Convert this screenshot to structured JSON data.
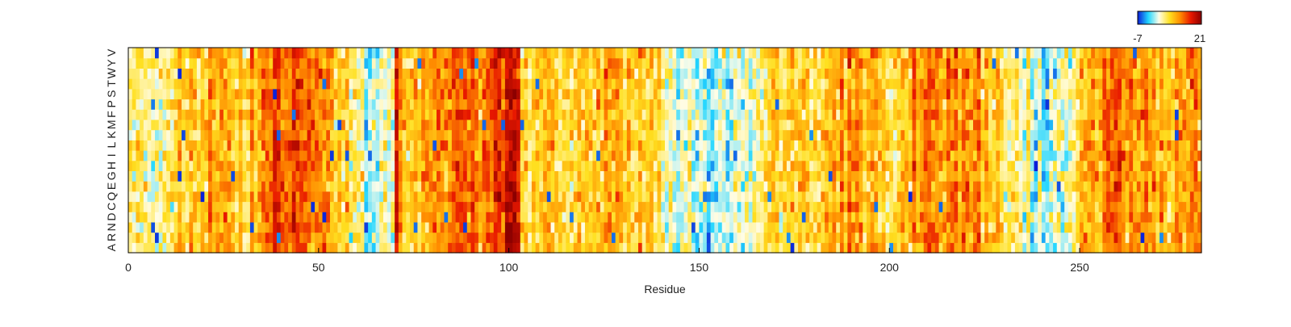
{
  "chart_data": {
    "type": "heatmap",
    "title": "",
    "xlabel": "Residue",
    "ylabel": "",
    "xlim": [
      0,
      282
    ],
    "x_ticks": [
      0,
      50,
      100,
      150,
      200,
      250
    ],
    "x_tick_labels": [
      "0",
      "50",
      "100",
      "150",
      "200",
      "250"
    ],
    "y_categories": [
      "A",
      "R",
      "N",
      "D",
      "C",
      "Q",
      "E",
      "G",
      "H",
      "I",
      "L",
      "K",
      "M",
      "F",
      "P",
      "S",
      "T",
      "W",
      "Y",
      "V"
    ],
    "value_range": [
      -7,
      21
    ],
    "n_residues": 282,
    "colorbar": {
      "min_label": "-7",
      "max_label": "21",
      "colors": [
        "#0a1ed8",
        "#22d6ff",
        "#fffde8",
        "#ffe020",
        "#ff8c00",
        "#e81800",
        "#8c0000"
      ],
      "placement": "top-right"
    },
    "column_profile": [
      [
        0,
        4
      ],
      [
        10,
        5
      ],
      [
        18,
        9
      ],
      [
        22,
        12
      ],
      [
        30,
        8
      ],
      [
        34,
        10
      ],
      [
        38,
        14
      ],
      [
        44,
        13
      ],
      [
        50,
        12
      ],
      [
        54,
        9
      ],
      [
        58,
        5
      ],
      [
        64,
        2
      ],
      [
        69,
        4
      ],
      [
        70,
        16
      ],
      [
        72,
        7
      ],
      [
        78,
        8
      ],
      [
        84,
        13
      ],
      [
        92,
        12
      ],
      [
        98,
        15
      ],
      [
        101,
        20
      ],
      [
        103,
        9
      ],
      [
        110,
        8
      ],
      [
        118,
        7
      ],
      [
        124,
        8
      ],
      [
        128,
        12
      ],
      [
        130,
        7
      ],
      [
        136,
        8
      ],
      [
        142,
        3
      ],
      [
        148,
        1
      ],
      [
        152,
        0
      ],
      [
        156,
        2
      ],
      [
        160,
        1
      ],
      [
        164,
        4
      ],
      [
        168,
        5
      ],
      [
        172,
        7
      ],
      [
        176,
        9
      ],
      [
        182,
        7
      ],
      [
        188,
        11
      ],
      [
        192,
        10
      ],
      [
        200,
        7
      ],
      [
        204,
        9
      ],
      [
        208,
        11
      ],
      [
        214,
        13
      ],
      [
        218,
        12
      ],
      [
        222,
        11
      ],
      [
        226,
        9
      ],
      [
        232,
        5
      ],
      [
        238,
        1
      ],
      [
        244,
        3
      ],
      [
        248,
        6
      ],
      [
        252,
        10
      ],
      [
        258,
        12
      ],
      [
        264,
        14
      ],
      [
        270,
        9
      ],
      [
        276,
        10
      ],
      [
        282,
        8
      ]
    ]
  }
}
